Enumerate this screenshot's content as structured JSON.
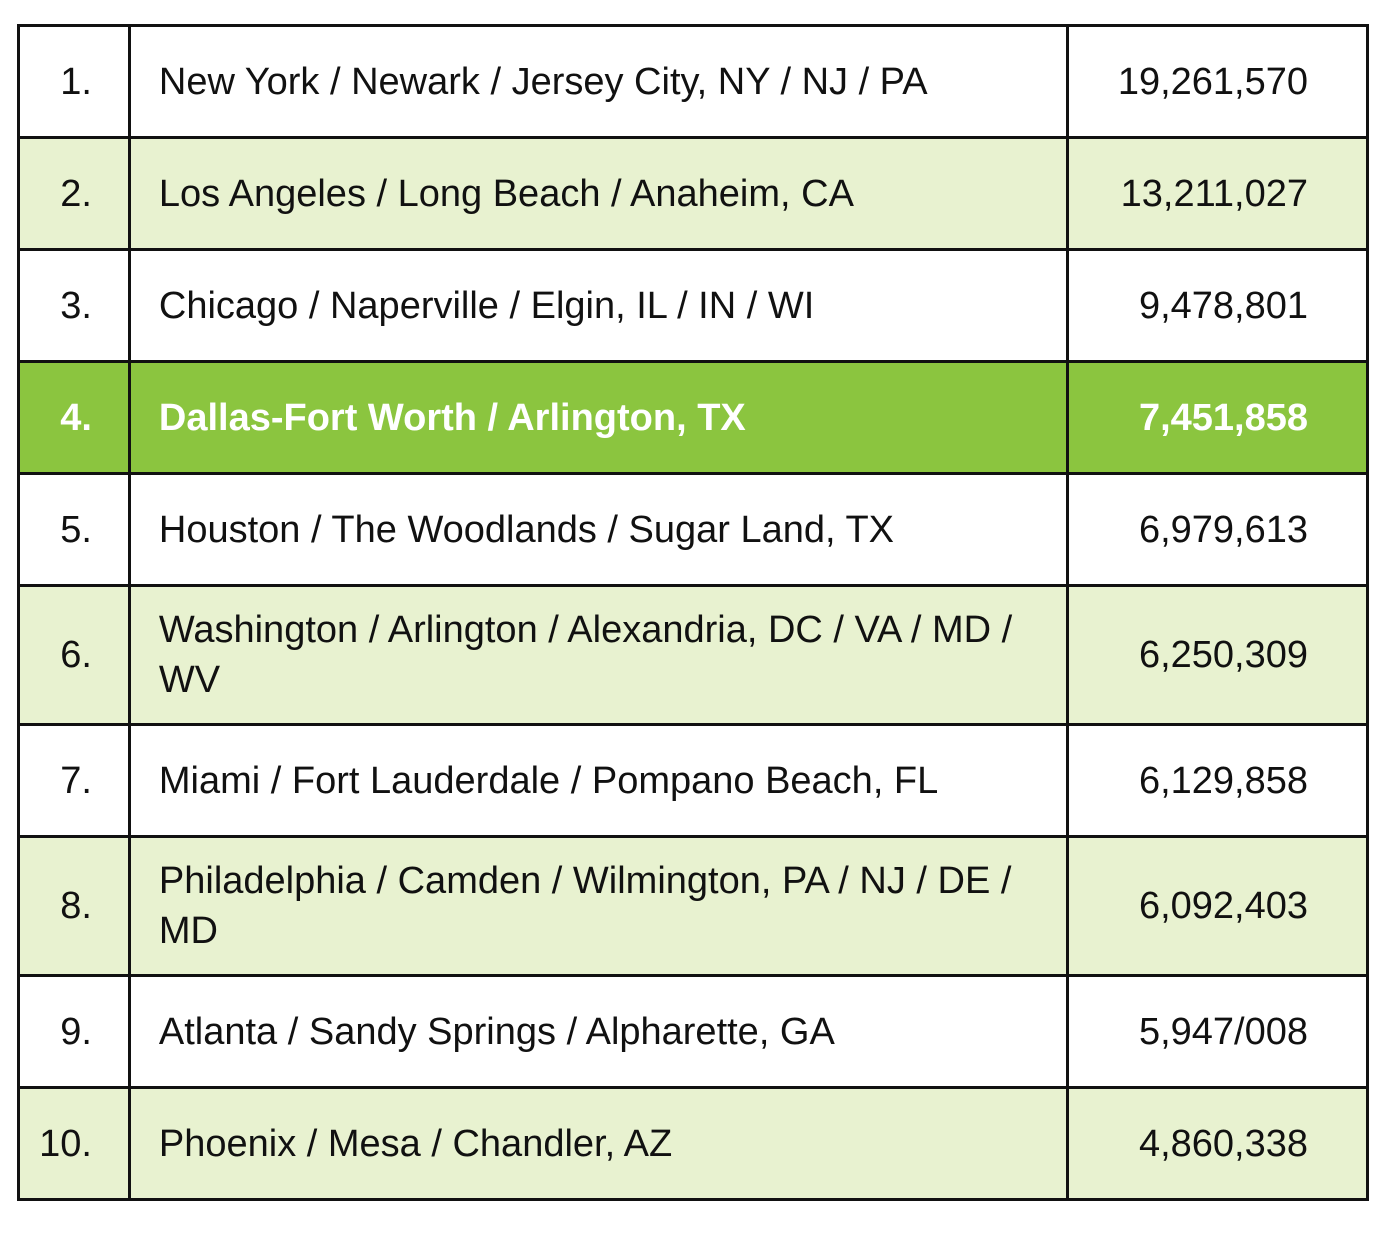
{
  "chart_data": {
    "type": "table",
    "columns": [
      "rank",
      "metro_area",
      "population"
    ],
    "rows": [
      {
        "rank": "1.",
        "area": "New York / Newark / Jersey City, NY / NJ / PA",
        "population": "19,261,570",
        "shade": "white"
      },
      {
        "rank": "2.",
        "area": "Los Angeles / Long Beach / Anaheim, CA",
        "population": "13,211,027",
        "shade": "green"
      },
      {
        "rank": "3.",
        "area": "Chicago / Naperville / Elgin, IL / IN / WI",
        "population": "9,478,801",
        "shade": "white"
      },
      {
        "rank": "4.",
        "area": "Dallas-Fort Worth / Arlington, TX",
        "population": "7,451,858",
        "shade": "highlight"
      },
      {
        "rank": "5.",
        "area": "Houston / The Woodlands / Sugar Land, TX",
        "population": "6,979,613",
        "shade": "white"
      },
      {
        "rank": "6.",
        "area": "Washington / Arlington / Alexandria, DC / VA / MD / WV",
        "population": "6,250,309",
        "shade": "green"
      },
      {
        "rank": "7.",
        "area": "Miami / Fort Lauderdale / Pompano Beach, FL",
        "population": "6,129,858",
        "shade": "white"
      },
      {
        "rank": "8.",
        "area": "Philadelphia / Camden / Wilmington, PA / NJ / DE / MD",
        "population": "6,092,403",
        "shade": "green"
      },
      {
        "rank": "9.",
        "area": "Atlanta / Sandy Springs / Alpharette, GA",
        "population": "5,947/008",
        "shade": "white"
      },
      {
        "rank": "10.",
        "area": "Phoenix / Mesa / Chandler, AZ",
        "population": "4,860,338",
        "shade": "green"
      }
    ],
    "colors": {
      "highlight": "#8bc53f",
      "alternate": "#e8f2d0",
      "border": "#111111"
    }
  }
}
